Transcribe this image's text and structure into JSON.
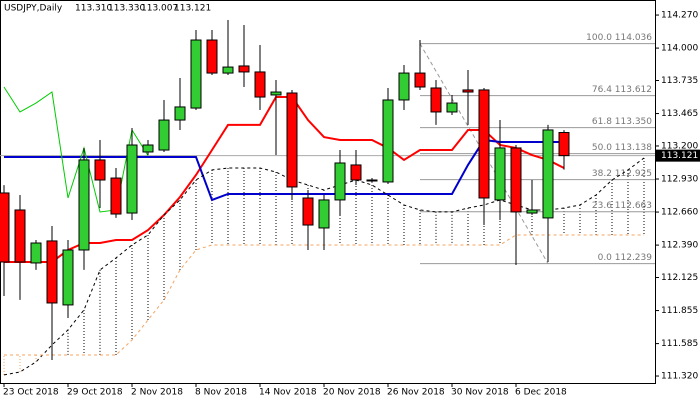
{
  "chart_data": {
    "type": "candlestick",
    "title": "USDJPY,Daily",
    "quote": [
      {
        "value": 113.31,
        "label": "113.310"
      },
      {
        "value": 113.33,
        "label": "113.330"
      },
      {
        "value": 113.007,
        "label": "113.007"
      },
      {
        "value": 113.121,
        "label": "113.121"
      }
    ],
    "ylim": [
      111.263,
      114.393
    ],
    "yticks": [
      {
        "value": 114.27,
        "label": "114.270"
      },
      {
        "value": 114.0,
        "label": "114.000"
      },
      {
        "value": 113.735,
        "label": "113.735"
      },
      {
        "value": 113.465,
        "label": "113.465"
      },
      {
        "value": 113.2,
        "label": "113.200"
      },
      {
        "value": 112.93,
        "label": "112.930"
      },
      {
        "value": 112.66,
        "label": "112.660"
      },
      {
        "value": 112.39,
        "label": "112.390"
      },
      {
        "value": 112.125,
        "label": "112.125"
      },
      {
        "value": 111.855,
        "label": "111.855"
      },
      {
        "value": 111.585,
        "label": "111.585"
      },
      {
        "value": 111.32,
        "label": "111.320"
      }
    ],
    "xticks": [
      {
        "value": 0,
        "label": "23 Oct 2018"
      },
      {
        "value": 4,
        "label": "29 Oct 2018"
      },
      {
        "value": 8,
        "label": "2 Nov 2018"
      },
      {
        "value": 12,
        "label": "8 Nov 2018"
      },
      {
        "value": 16,
        "label": "14 Nov 2018"
      },
      {
        "value": 20,
        "label": "20 Nov 2018"
      },
      {
        "value": 24,
        "label": "26 Nov 2018"
      },
      {
        "value": 28,
        "label": "30 Nov 2018"
      },
      {
        "value": 32,
        "label": "6 Dec 2018"
      }
    ],
    "up_color": "#32cd32",
    "down_color": "#ff0000",
    "candles": [
      [
        112.816,
        112.88,
        111.974,
        112.252
      ],
      [
        112.677,
        112.799,
        111.942,
        112.252
      ],
      [
        112.244,
        112.432,
        112.187,
        112.407
      ],
      [
        112.424,
        112.546,
        111.451,
        111.917
      ],
      [
        111.901,
        112.432,
        111.794,
        112.35
      ],
      [
        112.35,
        113.184,
        112.187,
        113.086
      ],
      [
        113.086,
        113.249,
        112.693,
        112.922
      ],
      [
        112.938,
        113.02,
        112.612,
        112.644
      ],
      [
        112.652,
        113.347,
        112.595,
        113.208
      ],
      [
        113.151,
        113.249,
        113.126,
        113.208
      ],
      [
        113.167,
        113.576,
        113.151,
        113.412
      ],
      [
        113.412,
        113.756,
        113.331,
        113.519
      ],
      [
        113.51,
        114.148,
        113.494,
        114.066
      ],
      [
        114.066,
        114.148,
        113.78,
        113.796
      ],
      [
        113.796,
        114.23,
        113.78,
        113.845
      ],
      [
        113.854,
        114.189,
        113.682,
        113.805
      ],
      [
        113.805,
        114.025,
        113.494,
        113.6
      ],
      [
        113.617,
        113.739,
        113.126,
        113.641
      ],
      [
        113.633,
        113.658,
        112.759,
        112.865
      ],
      [
        112.775,
        112.84,
        112.35,
        112.554
      ],
      [
        112.53,
        112.799,
        112.35,
        112.759
      ],
      [
        112.759,
        113.167,
        112.636,
        113.061
      ],
      [
        113.045,
        113.167,
        112.881,
        112.922
      ],
      [
        112.922,
        112.938,
        112.899,
        112.914
      ],
      [
        112.906,
        113.674,
        112.889,
        113.576
      ],
      [
        113.576,
        113.862,
        113.494,
        113.796
      ],
      [
        113.796,
        114.066,
        113.658,
        113.682
      ],
      [
        113.674,
        113.739,
        113.372,
        113.478
      ],
      [
        113.478,
        113.617,
        113.453,
        113.551
      ],
      [
        113.658,
        113.821,
        113.372,
        113.641
      ],
      [
        113.658,
        113.674,
        112.554,
        112.775
      ],
      [
        112.759,
        113.412,
        112.595,
        113.184
      ],
      [
        113.184,
        113.208,
        112.227,
        112.661
      ],
      [
        112.652,
        112.922,
        112.636,
        112.677
      ],
      [
        112.612,
        113.372,
        112.252,
        113.331
      ],
      [
        113.31,
        113.33,
        113.007,
        113.121
      ]
    ],
    "lines": [
      {
        "color": "#ff0000",
        "width": 2,
        "dash": "",
        "values": [
          112.252,
          112.252,
          112.252,
          112.252,
          112.35,
          112.407,
          112.407,
          112.432,
          112.432,
          112.513,
          112.636,
          112.783,
          112.963,
          113.167,
          113.372,
          113.372,
          113.372,
          113.6,
          113.6,
          113.412,
          113.273,
          113.249,
          113.249,
          113.249,
          113.184,
          113.086,
          113.167,
          113.167,
          113.167,
          113.331,
          113.331,
          113.208,
          113.184,
          113.126,
          113.086,
          113.02
        ]
      },
      {
        "color": "#0000cc",
        "width": 2,
        "dash": "",
        "values": [
          113.11,
          113.11,
          113.11,
          113.11,
          113.11,
          113.11,
          113.11,
          113.11,
          113.11,
          113.11,
          113.11,
          113.11,
          113.11,
          112.759,
          112.808,
          112.808,
          112.808,
          112.808,
          112.808,
          112.808,
          112.808,
          112.808,
          112.808,
          112.808,
          112.808,
          112.808,
          112.808,
          112.808,
          112.808,
          113.045,
          113.249,
          113.233,
          113.233,
          113.233,
          113.233,
          113.233
        ]
      },
      {
        "color": "#00cc00",
        "width": 1,
        "dash": "",
        "values": [
          113.682,
          113.478,
          113.551,
          113.641,
          112.775,
          113.184,
          112.661,
          112.677,
          113.331,
          113.121
        ]
      },
      {
        "color": "#000000",
        "width": 1,
        "dash": "3,3",
        "values": [
          111.329,
          111.353,
          111.435,
          111.574,
          111.697,
          111.86,
          112.187,
          112.285,
          112.391,
          112.473,
          112.636,
          112.759,
          112.922,
          113.004,
          113.02,
          113.02,
          113.02,
          112.987,
          112.922,
          112.881,
          112.84,
          112.881,
          112.922,
          112.881,
          112.799,
          112.718,
          112.677,
          112.661,
          112.661,
          112.693,
          112.718,
          112.759,
          112.718,
          112.677,
          112.677,
          112.693,
          112.718,
          112.799,
          112.922,
          113.004,
          113.102
        ]
      },
      {
        "color": "#f4a460",
        "width": 1,
        "dash": "3,3",
        "values": [
          111.492,
          111.492,
          111.492,
          111.492,
          111.492,
          111.492,
          111.492,
          111.492,
          111.614,
          111.778,
          111.942,
          112.187,
          112.35,
          112.391,
          112.391,
          112.391,
          112.391,
          112.391,
          112.391,
          112.391,
          112.391,
          112.391,
          112.391,
          112.391,
          112.391,
          112.391,
          112.391,
          112.391,
          112.391,
          112.391,
          112.391,
          112.391,
          112.473,
          112.473,
          112.473,
          112.473,
          112.473,
          112.473,
          112.473,
          112.473,
          112.473
        ]
      }
    ],
    "fib": [
      {
        "value": 114.036,
        "label": "100.0 114.036"
      },
      {
        "value": 113.612,
        "label": "76.4 113.612"
      },
      {
        "value": 113.35,
        "label": "61.8 113.350"
      },
      {
        "value": 113.138,
        "label": "50.0 113.138"
      },
      {
        "value": 112.925,
        "label": "38.2 112.925"
      },
      {
        "value": 112.663,
        "label": "23.6 112.663"
      },
      {
        "value": 112.239,
        "label": "0.0 112.239"
      }
    ],
    "last_price": 113.121
  }
}
